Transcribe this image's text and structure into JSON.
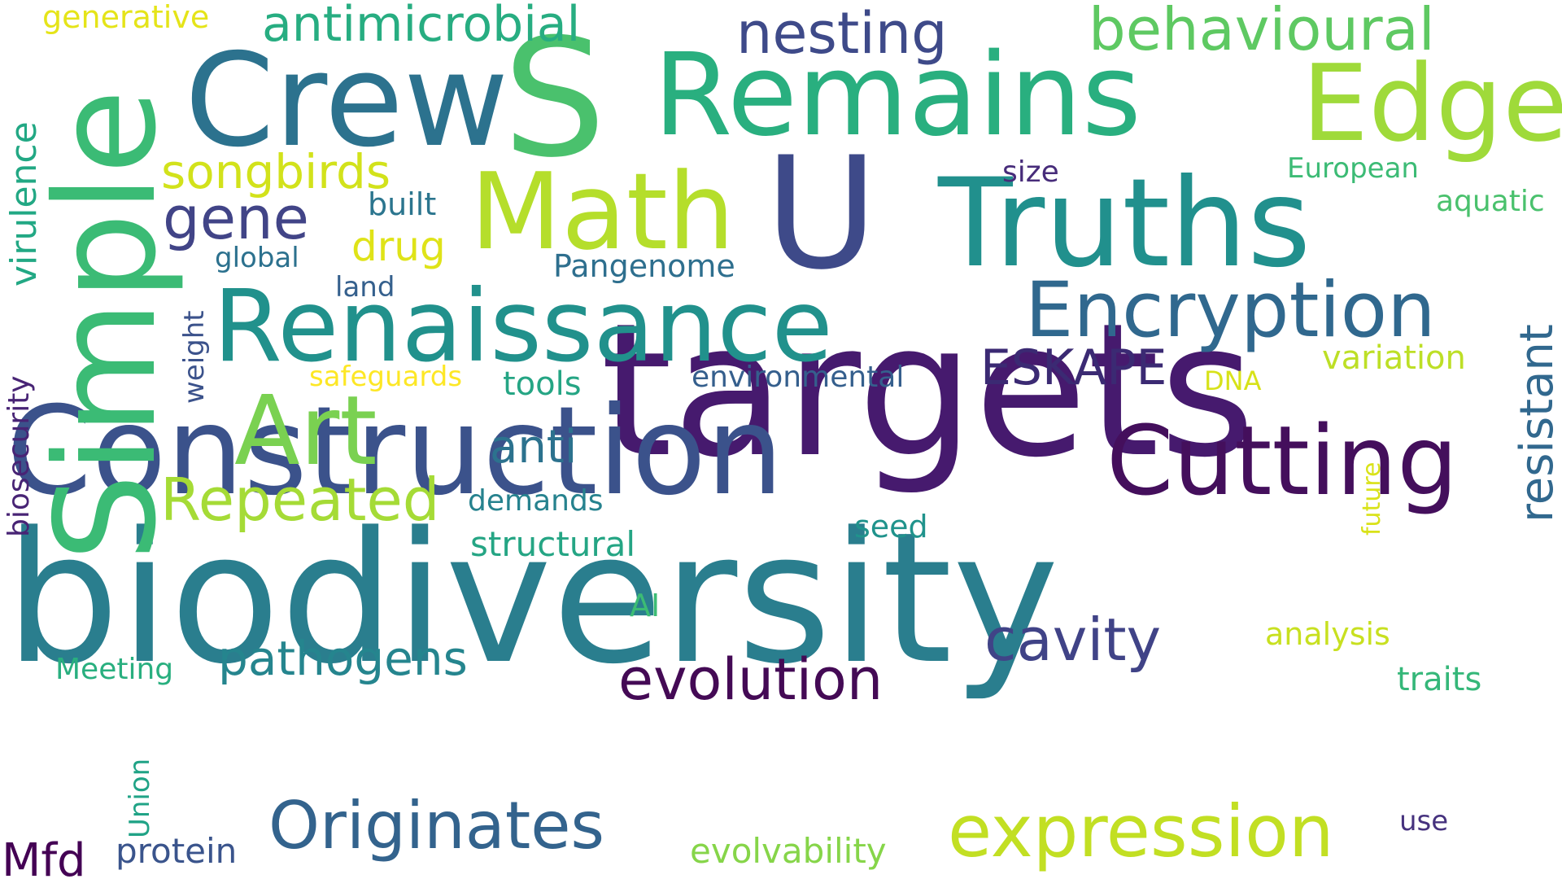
{
  "words": [
    {
      "text": "biodiversity",
      "color": "#2a7e8e"
    },
    {
      "text": "targets",
      "color": "#461a6e"
    },
    {
      "text": "Construction",
      "color": "#3b528b"
    },
    {
      "text": "Renaissance",
      "color": "#21918c"
    },
    {
      "text": "Truths",
      "color": "#21908d"
    },
    {
      "text": "Remains",
      "color": "#29af7f"
    },
    {
      "text": "Crew",
      "color": "#2c728e"
    },
    {
      "text": "S",
      "color": "#4ac16d"
    },
    {
      "text": "U",
      "color": "#3e4a89"
    },
    {
      "text": "Edge",
      "color": "#9fda3a"
    },
    {
      "text": "Simple",
      "color": "#3bbb75"
    },
    {
      "text": "Math",
      "color": "#b5de2b"
    },
    {
      "text": "Cutting",
      "color": "#440f5c"
    },
    {
      "text": "Encryption",
      "color": "#30688e"
    },
    {
      "text": "Art",
      "color": "#7ad151"
    },
    {
      "text": "expression",
      "color": "#c2df23"
    },
    {
      "text": "Originates",
      "color": "#33638d"
    },
    {
      "text": "evolution",
      "color": "#440a55"
    },
    {
      "text": "cavity",
      "color": "#404387"
    },
    {
      "text": "Repeated",
      "color": "#a5db36"
    },
    {
      "text": "pathogens",
      "color": "#25858e"
    },
    {
      "text": "nesting",
      "color": "#3e4a89"
    },
    {
      "text": "behavioural",
      "color": "#5ec962"
    },
    {
      "text": "antimicrobial",
      "color": "#27ad81"
    },
    {
      "text": "songbirds",
      "color": "#d2e21b"
    },
    {
      "text": "gene",
      "color": "#414487"
    },
    {
      "text": "resistant",
      "color": "#31688e"
    },
    {
      "text": "anti",
      "color": "#2c728e"
    },
    {
      "text": "ESKAPE",
      "color": "#3b2a73"
    },
    {
      "text": "virulence",
      "color": "#22a884"
    },
    {
      "text": "drug",
      "color": "#dfe318"
    },
    {
      "text": "biosecurity",
      "color": "#482475"
    },
    {
      "text": "structural",
      "color": "#25a584"
    },
    {
      "text": "environmental",
      "color": "#355f8d"
    },
    {
      "text": "Pangenome",
      "color": "#2e6f8e"
    },
    {
      "text": "variation",
      "color": "#bddf26"
    },
    {
      "text": "analysis",
      "color": "#c8e020"
    },
    {
      "text": "traits",
      "color": "#35b779"
    },
    {
      "text": "Mfd",
      "color": "#440154"
    },
    {
      "text": "protein",
      "color": "#3a548c"
    },
    {
      "text": "evolvability",
      "color": "#86d549"
    },
    {
      "text": "Meeting",
      "color": "#29af7f"
    },
    {
      "text": "tools",
      "color": "#25a584"
    },
    {
      "text": "safeguards",
      "color": "#fde725"
    },
    {
      "text": "demands",
      "color": "#26828e"
    },
    {
      "text": "weight",
      "color": "#3b528b"
    },
    {
      "text": "global",
      "color": "#2c718e"
    },
    {
      "text": "land",
      "color": "#35608d"
    },
    {
      "text": "built",
      "color": "#2b758e"
    },
    {
      "text": "size",
      "color": "#472c7a"
    },
    {
      "text": "European",
      "color": "#3cbb75"
    },
    {
      "text": "aquatic",
      "color": "#4ac16d"
    },
    {
      "text": "DNA",
      "color": "#d7e219"
    },
    {
      "text": "future",
      "color": "#d9e219"
    },
    {
      "text": "seed",
      "color": "#20938c"
    },
    {
      "text": "AI",
      "color": "#3cbc74"
    },
    {
      "text": "use",
      "color": "#46327e"
    },
    {
      "text": "Union",
      "color": "#20a386"
    },
    {
      "text": "generative",
      "color": "#e5e419"
    }
  ]
}
